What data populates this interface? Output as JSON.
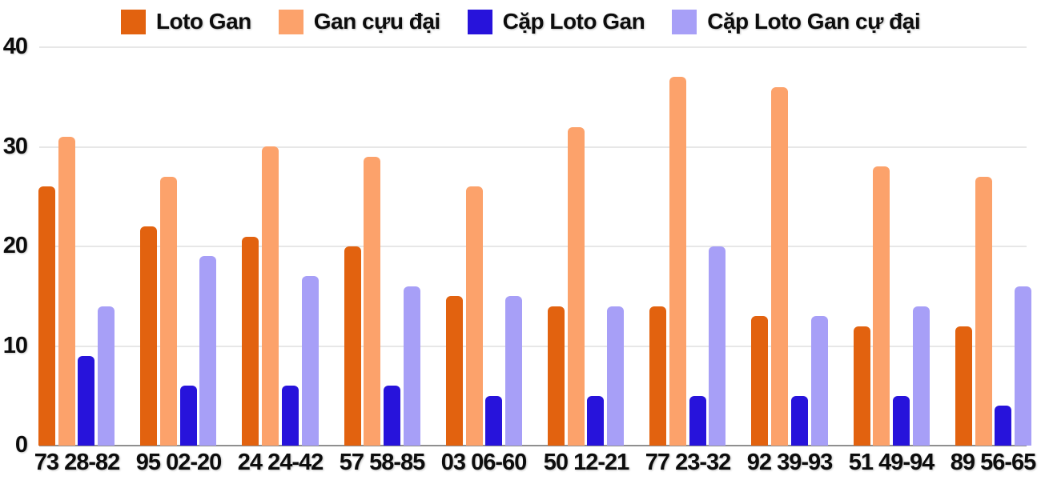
{
  "chart_data": {
    "type": "bar",
    "title": "",
    "xlabel": "",
    "ylabel": "",
    "categories": [
      "73 28-82",
      "95 02-20",
      "24 24-42",
      "57 58-85",
      "03 06-60",
      "50 12-21",
      "77 23-32",
      "92 39-93",
      "51 49-94",
      "89 56-65"
    ],
    "series": [
      {
        "name": "Loto Gan",
        "color": "#E2620F",
        "values": [
          26,
          22,
          21,
          20,
          15,
          14,
          14,
          13,
          12,
          12
        ]
      },
      {
        "name": "Gan cựu đại",
        "color": "#FCA26B",
        "values": [
          31,
          27,
          30,
          29,
          26,
          32,
          37,
          36,
          28,
          27
        ]
      },
      {
        "name": "Cặp Loto Gan",
        "color": "#2713DB",
        "values": [
          9,
          6,
          6,
          6,
          5,
          5,
          5,
          5,
          5,
          4
        ]
      },
      {
        "name": "Cặp Loto Gan cự đại",
        "color": "#A79FF7",
        "values": [
          14,
          19,
          17,
          16,
          15,
          14,
          20,
          13,
          14,
          16
        ]
      }
    ],
    "ylim": [
      0,
      40
    ],
    "yticks": [
      "0",
      "10",
      "20",
      "30",
      "40"
    ],
    "grid": "horizontal",
    "legend_position": "top",
    "colors": {
      "grid": "#e7e7e7",
      "axis": "#8f8f8f",
      "text": "#0d0d0d",
      "background": "#ffffff"
    }
  }
}
